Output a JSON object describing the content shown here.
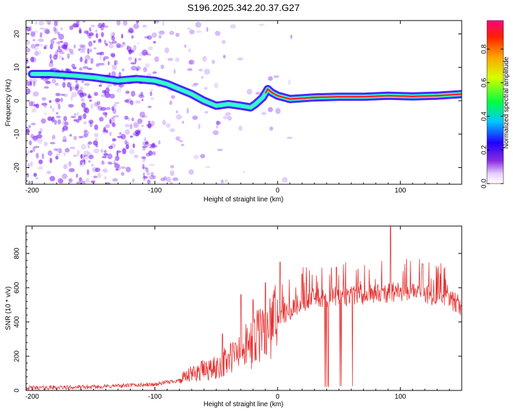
{
  "title": "S196.2025.342.20.37.G27",
  "colors": {
    "snr_line": "#e53030",
    "ridge_core": "#ff2a1a",
    "ridge_mid": "#33ffcc",
    "ridge_edge": "#2a00ff",
    "scatter": "#7b20f0"
  },
  "chart_data": [
    {
      "type": "heatmap",
      "name": "spectrogram",
      "xlabel": "Height of straight line (km)",
      "ylabel": "Frequency (Hz)",
      "xlim": [
        -205,
        150
      ],
      "ylim": [
        -25,
        24
      ],
      "xticks": [
        -200,
        -100,
        0,
        100
      ],
      "xtick_labels": [
        "-200",
        "-100",
        "0",
        "100"
      ],
      "yticks": [
        -20,
        -10,
        0,
        10,
        20
      ],
      "ytick_labels": [
        "-20",
        "-10",
        "0",
        "10",
        "20"
      ],
      "colorbar": {
        "label": "Normalized spectral amplitude",
        "range": [
          0,
          0.97
        ],
        "ticks": [
          0,
          0.2,
          0.4,
          0.6,
          0.8
        ],
        "tick_labels": [
          "0.0",
          "0.2",
          "0.4",
          "0.6",
          "0.8"
        ]
      },
      "ridge": {
        "x": [
          -200,
          -185,
          -165,
          -150,
          -130,
          -115,
          -100,
          -90,
          -80,
          -70,
          -60,
          -50,
          -40,
          -30,
          -22,
          -18,
          -12,
          -8,
          -5,
          0,
          10,
          30,
          50,
          70,
          90,
          110,
          130,
          150
        ],
        "y": [
          8,
          8,
          7.5,
          7,
          6,
          6.5,
          6,
          5,
          3.5,
          2,
          0,
          -1.5,
          -1,
          -1.5,
          -2,
          -1,
          1,
          3.5,
          2.5,
          1.5,
          0.5,
          1,
          1.2,
          1.2,
          1.5,
          1.3,
          1.5,
          2
        ]
      }
    },
    {
      "type": "line",
      "name": "snr",
      "xlabel": "Height of straight line (km)",
      "ylabel": "SNR (10 * v/v)",
      "xlim": [
        -205,
        150
      ],
      "ylim": [
        0,
        960
      ],
      "xticks": [
        -200,
        -100,
        0,
        100
      ],
      "xtick_labels": [
        "-200",
        "-100",
        "0",
        "100"
      ],
      "yticks": [
        0,
        200,
        400,
        600,
        800
      ],
      "ytick_labels": [
        "0",
        "200",
        "400",
        "600",
        "800"
      ],
      "envelope": {
        "x": [
          -205,
          -150,
          -120,
          -100,
          -80,
          -65,
          -50,
          -40,
          -30,
          -20,
          -10,
          0,
          10,
          20,
          30,
          40,
          60,
          80,
          100,
          120,
          140,
          150
        ],
        "y": [
          15,
          20,
          30,
          35,
          60,
          110,
          130,
          180,
          230,
          280,
          350,
          420,
          470,
          520,
          540,
          545,
          555,
          565,
          575,
          570,
          530,
          490
        ]
      },
      "spikes": [
        {
          "x": -62,
          "y": 170
        },
        {
          "x": -45,
          "y": 330
        },
        {
          "x": -30,
          "y": 560
        },
        {
          "x": -20,
          "y": 530
        },
        {
          "x": -10,
          "y": 630
        },
        {
          "x": 2,
          "y": 750
        },
        {
          "x": 20,
          "y": 680
        },
        {
          "x": 48,
          "y": 720
        },
        {
          "x": 92,
          "y": 960
        },
        {
          "x": 118,
          "y": 740
        }
      ],
      "dips": {
        "x_start": 30,
        "x_end": 65,
        "y": 20
      }
    }
  ]
}
